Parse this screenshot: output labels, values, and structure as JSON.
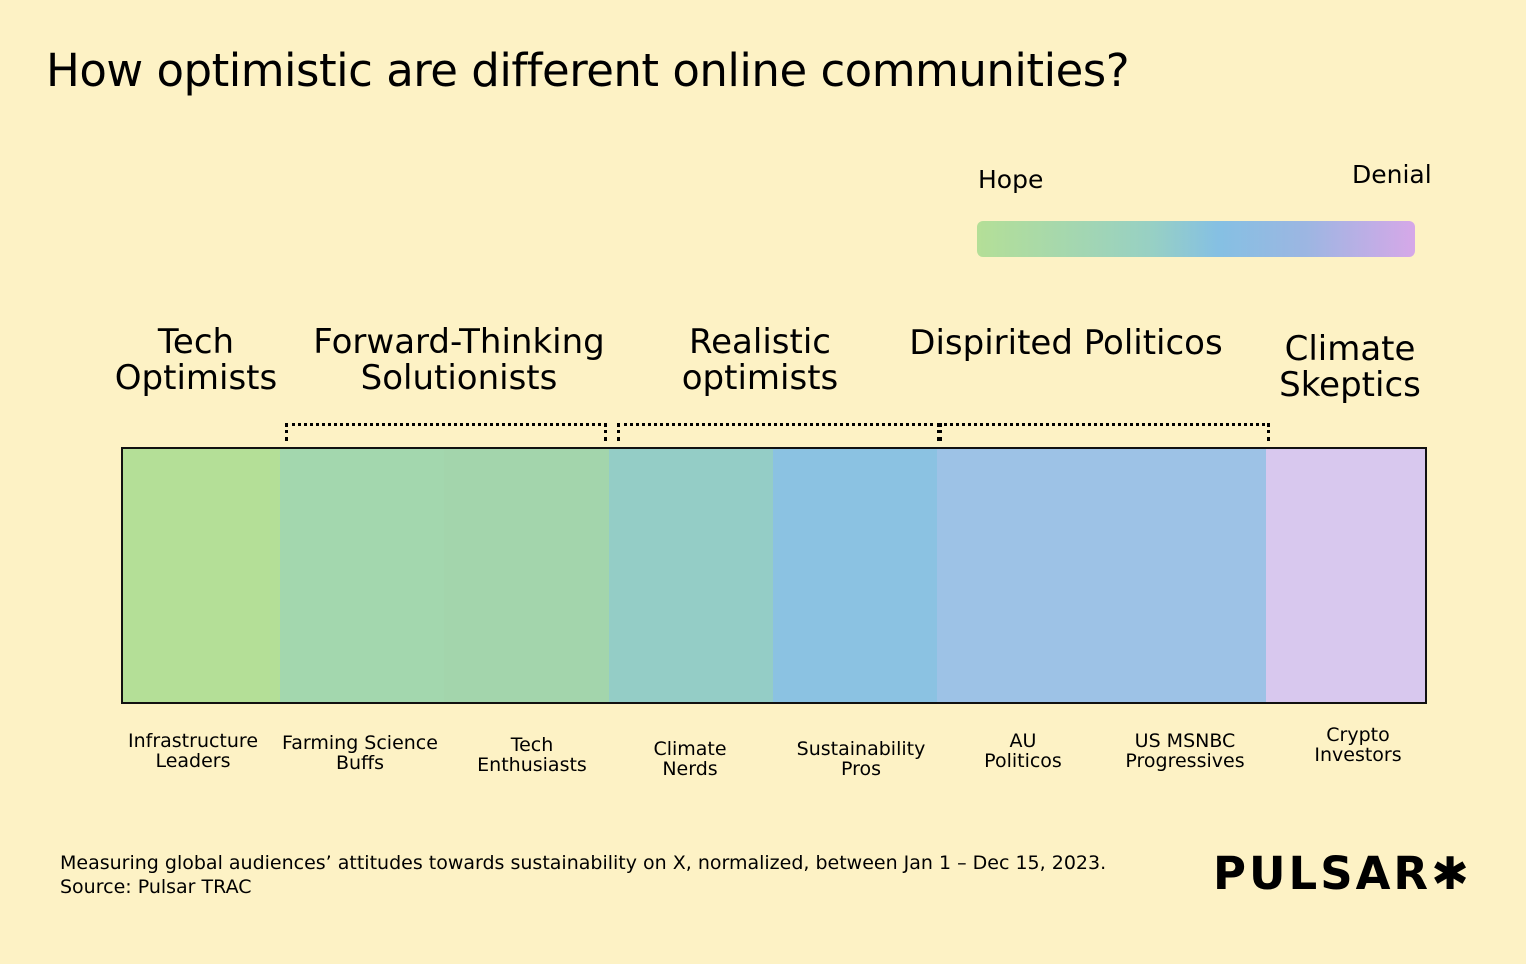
{
  "title": "How optimistic are different online communities?",
  "legend": {
    "left": "Hope",
    "right": "Denial",
    "gradient": [
      "#b4df97",
      "#97d0c4",
      "#85c0e3",
      "#9cb6e2",
      "#d6a8e8"
    ]
  },
  "groups": [
    {
      "line1": "Tech",
      "line2": "Optimists"
    },
    {
      "line1": "Forward-Thinking",
      "line2": "Solutionists"
    },
    {
      "line1": "Realistic",
      "line2": "optimists"
    },
    {
      "line1": "Dispirited Politicos",
      "line2": ""
    },
    {
      "line1": "Climate",
      "line2": "Skeptics"
    }
  ],
  "segments": [
    {
      "line1": "Infrastructure",
      "line2": "Leaders",
      "color": "#b4df97"
    },
    {
      "line1": "Farming Science",
      "line2": "Buffs",
      "color": "#a3d7ae"
    },
    {
      "line1": "Tech",
      "line2": "Enthusiasts",
      "color": "#a3d5ac"
    },
    {
      "line1": "Climate",
      "line2": "Nerds",
      "color": "#94cdc6"
    },
    {
      "line1": "Sustainability",
      "line2": "Pros",
      "color": "#8bc2e2"
    },
    {
      "line1": "AU",
      "line2": "Politicos",
      "color": "#9dc2e6"
    },
    {
      "line1": "US MSNBC",
      "line2": "Progressives",
      "color": "#9dc2e6"
    },
    {
      "line1": "Crypto",
      "line2": "Investors",
      "color": "#d8c8ee"
    }
  ],
  "footer": {
    "line1": "Measuring global audiences’ attitudes towards sustainability on X, normalized, between Jan 1 – Dec 15, 2023.",
    "line2": "Source: Pulsar TRAC"
  },
  "logo": "PULSAR✱"
}
